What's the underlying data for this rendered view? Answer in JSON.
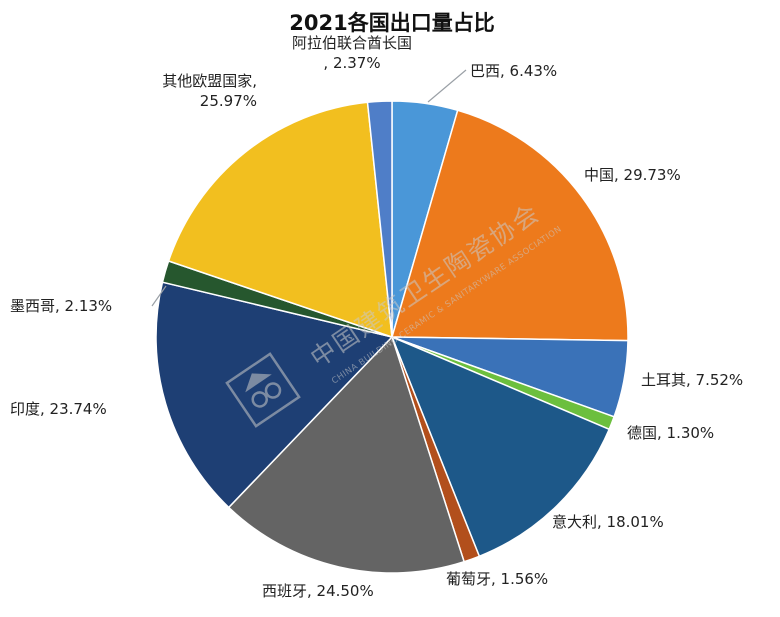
{
  "chart_data": {
    "type": "pie",
    "title": "2021各国出口量占比",
    "slices": [
      {
        "label": "巴西",
        "value": 6.43,
        "color": "#4a97d8",
        "text": "巴西, 6.43%"
      },
      {
        "label": "中国",
        "value": 29.73,
        "color": "#ed7a1c",
        "text": "中国, 29.73%"
      },
      {
        "label": "土耳其",
        "value": 7.52,
        "color": "#3a72b8",
        "text": "土耳其, 7.52%"
      },
      {
        "label": "德国",
        "value": 1.3,
        "color": "#6cbf3e",
        "text": "德国, 1.30%"
      },
      {
        "label": "意大利",
        "value": 18.01,
        "color": "#1d5889",
        "text": "意大利, 18.01%"
      },
      {
        "label": "葡萄牙",
        "value": 1.56,
        "color": "#b24f1c",
        "text": "葡萄牙, 1.56%"
      },
      {
        "label": "西班牙",
        "value": 24.5,
        "color": "#646464",
        "text": "西班牙, 24.50%"
      },
      {
        "label": "印度",
        "value": 23.74,
        "color": "#1e3f74",
        "text": "印度, 23.74%"
      },
      {
        "label": "墨西哥",
        "value": 2.13,
        "color": "#26572e",
        "text": "墨西哥, 2.13%"
      },
      {
        "label": "其他欧盟国家",
        "value": 25.97,
        "color": "#f2bf1f",
        "text": "其他欧盟国家, 25.97%"
      },
      {
        "label": "阿拉伯联合酋长国",
        "value": 2.37,
        "color": "#4f7ec8",
        "text": "阿拉伯联合酋长国, 2.37%"
      }
    ],
    "legend": "none"
  },
  "watermark": {
    "name": "中国建筑卫生陶瓷协会",
    "subtitle": "CHINA BUILDING CERAMIC & SANITARYWARE ASSOCIATION"
  }
}
